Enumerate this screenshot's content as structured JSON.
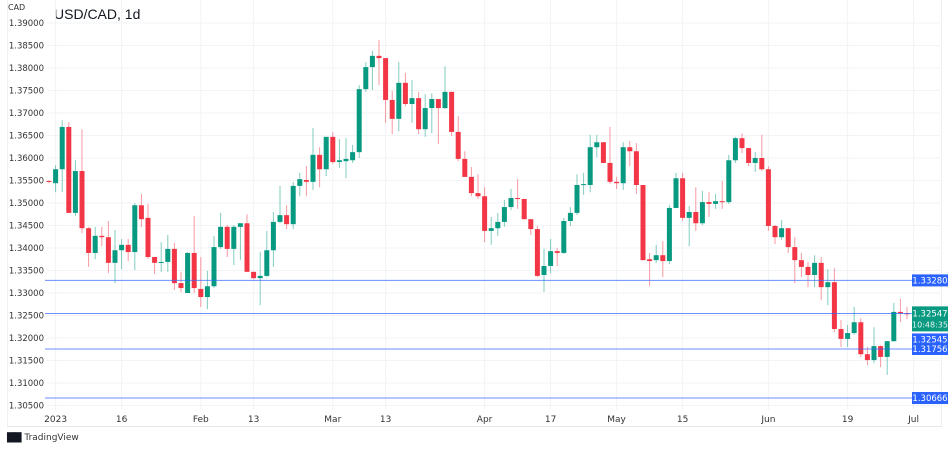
{
  "header": {
    "currency": "CAD",
    "title": "USD/CAD, 1d"
  },
  "branding": {
    "logo": "TV",
    "name": "TradingView"
  },
  "colors": {
    "up": "#089981",
    "down": "#f23645",
    "line": "#2962ff",
    "grid": "#f2f3f5",
    "text": "#333333"
  },
  "chart_data": {
    "type": "candlestick",
    "title": "USD/CAD, 1d",
    "ylabel": "CAD",
    "ylim": [
      1.3044,
      1.3912
    ],
    "grid": true,
    "y_ticks": [
      "1.39000",
      "1.38500",
      "1.38000",
      "1.37500",
      "1.37000",
      "1.36500",
      "1.36000",
      "1.35500",
      "1.35000",
      "1.34500",
      "1.34000",
      "1.33500",
      "1.33000",
      "1.32500",
      "1.32000",
      "1.31500",
      "1.31000",
      "1.30500"
    ],
    "x_ticks": [
      {
        "label": "2023",
        "index": 1
      },
      {
        "label": "16",
        "index": 11
      },
      {
        "label": "Feb",
        "index": 23
      },
      {
        "label": "13",
        "index": 31
      },
      {
        "label": "Mar",
        "index": 43
      },
      {
        "label": "13",
        "index": 51
      },
      {
        "label": "Apr",
        "index": 66
      },
      {
        "label": "17",
        "index": 76
      },
      {
        "label": "May",
        "index": 86
      },
      {
        "label": "15",
        "index": 96
      },
      {
        "label": "Jun",
        "index": 109
      },
      {
        "label": "19",
        "index": 121
      },
      {
        "label": "Jul",
        "index": 131
      }
    ],
    "ohlc": [
      [
        1.3549,
        1.355,
        1.3544,
        1.3547
      ],
      [
        1.3544,
        1.3584,
        1.3524,
        1.3575
      ],
      [
        1.3575,
        1.3684,
        1.3524,
        1.3669
      ],
      [
        1.3669,
        1.368,
        1.3478,
        1.3478
      ],
      [
        1.3478,
        1.3595,
        1.3471,
        1.3571
      ],
      [
        1.3571,
        1.3664,
        1.3433,
        1.3444
      ],
      [
        1.3444,
        1.3447,
        1.3358,
        1.3389
      ],
      [
        1.3389,
        1.3447,
        1.3375,
        1.3427
      ],
      [
        1.3427,
        1.3447,
        1.3404,
        1.3424
      ],
      [
        1.3424,
        1.346,
        1.3344,
        1.3367
      ],
      [
        1.3367,
        1.344,
        1.3322,
        1.3395
      ],
      [
        1.3395,
        1.342,
        1.3353,
        1.3407
      ],
      [
        1.3407,
        1.342,
        1.3371,
        1.3391
      ],
      [
        1.3391,
        1.35,
        1.3351,
        1.3495
      ],
      [
        1.3495,
        1.352,
        1.3447,
        1.3464
      ],
      [
        1.3467,
        1.3498,
        1.3375,
        1.338
      ],
      [
        1.338,
        1.338,
        1.3342,
        1.3367
      ],
      [
        1.3367,
        1.3413,
        1.3347,
        1.3369
      ],
      [
        1.3369,
        1.3429,
        1.3347,
        1.3398
      ],
      [
        1.3398,
        1.3411,
        1.3307,
        1.3322
      ],
      [
        1.3322,
        1.3347,
        1.3302,
        1.3311
      ],
      [
        1.33,
        1.3391,
        1.33,
        1.3389
      ],
      [
        1.3389,
        1.3471,
        1.33,
        1.3311
      ],
      [
        1.3309,
        1.338,
        1.3269,
        1.3291
      ],
      [
        1.3291,
        1.3349,
        1.3264,
        1.3315
      ],
      [
        1.3315,
        1.3427,
        1.3311,
        1.3402
      ],
      [
        1.3402,
        1.3478,
        1.3398,
        1.3447
      ],
      [
        1.3447,
        1.3451,
        1.338,
        1.3398
      ],
      [
        1.3398,
        1.3451,
        1.3362,
        1.3447
      ],
      [
        1.3447,
        1.3455,
        1.3373,
        1.3455
      ],
      [
        1.3455,
        1.3475,
        1.3347,
        1.3347
      ],
      [
        1.3347,
        1.3347,
        1.3331,
        1.3333
      ],
      [
        1.3333,
        1.3391,
        1.3273,
        1.3338
      ],
      [
        1.3338,
        1.3438,
        1.3335,
        1.3395
      ],
      [
        1.3395,
        1.348,
        1.3358,
        1.3458
      ],
      [
        1.3458,
        1.3538,
        1.3455,
        1.3473
      ],
      [
        1.3473,
        1.3495,
        1.3442,
        1.3453
      ],
      [
        1.3453,
        1.3547,
        1.3442,
        1.3538
      ],
      [
        1.3538,
        1.3567,
        1.3515,
        1.3553
      ],
      [
        1.3551,
        1.3582,
        1.3515,
        1.3547
      ],
      [
        1.3547,
        1.3667,
        1.3529,
        1.3607
      ],
      [
        1.3607,
        1.3624,
        1.3535,
        1.3575
      ],
      [
        1.3575,
        1.3647,
        1.356,
        1.3647
      ],
      [
        1.3647,
        1.3658,
        1.3587,
        1.3591
      ],
      [
        1.3591,
        1.3642,
        1.3578,
        1.3595
      ],
      [
        1.3593,
        1.3644,
        1.3555,
        1.3598
      ],
      [
        1.3595,
        1.3629,
        1.3589,
        1.3613
      ],
      [
        1.3613,
        1.3762,
        1.36,
        1.3753
      ],
      [
        1.3753,
        1.3813,
        1.3747,
        1.3802
      ],
      [
        1.3802,
        1.3838,
        1.3751,
        1.3827
      ],
      [
        1.3827,
        1.3862,
        1.3762,
        1.3822
      ],
      [
        1.3822,
        1.3822,
        1.3678,
        1.3729
      ],
      [
        1.3729,
        1.3749,
        1.3653,
        1.3687
      ],
      [
        1.3687,
        1.3813,
        1.366,
        1.3767
      ],
      [
        1.3767,
        1.3789,
        1.3715,
        1.372
      ],
      [
        1.372,
        1.3773,
        1.3678,
        1.3733
      ],
      [
        1.3733,
        1.3747,
        1.3653,
        1.3664
      ],
      [
        1.3664,
        1.3742,
        1.3647,
        1.3711
      ],
      [
        1.3711,
        1.3744,
        1.3655,
        1.3731
      ],
      [
        1.3731,
        1.3731,
        1.3631,
        1.3711
      ],
      [
        1.3711,
        1.3804,
        1.3709,
        1.3747
      ],
      [
        1.3747,
        1.3747,
        1.3649,
        1.3658
      ],
      [
        1.3658,
        1.3693,
        1.3593,
        1.3598
      ],
      [
        1.3598,
        1.3615,
        1.3558,
        1.3558
      ],
      [
        1.3558,
        1.358,
        1.3515,
        1.3522
      ],
      [
        1.3522,
        1.3564,
        1.3509,
        1.3515
      ],
      [
        1.3515,
        1.3535,
        1.3413,
        1.3438
      ],
      [
        1.3438,
        1.3469,
        1.3407,
        1.3444
      ],
      [
        1.3444,
        1.3478,
        1.3427,
        1.3458
      ],
      [
        1.3458,
        1.3507,
        1.3447,
        1.3491
      ],
      [
        1.3491,
        1.3531,
        1.3484,
        1.3511
      ],
      [
        1.3511,
        1.3553,
        1.3487,
        1.3509
      ],
      [
        1.3509,
        1.3509,
        1.3464,
        1.3464
      ],
      [
        1.3464,
        1.3464,
        1.3429,
        1.3442
      ],
      [
        1.3442,
        1.3449,
        1.3335,
        1.3338
      ],
      [
        1.334,
        1.3398,
        1.3302,
        1.336
      ],
      [
        1.336,
        1.342,
        1.3344,
        1.3393
      ],
      [
        1.3393,
        1.34,
        1.336,
        1.3389
      ],
      [
        1.3389,
        1.3467,
        1.3387,
        1.346
      ],
      [
        1.346,
        1.3491,
        1.3449,
        1.3478
      ],
      [
        1.3478,
        1.3564,
        1.3473,
        1.354
      ],
      [
        1.354,
        1.3567,
        1.3518,
        1.3542
      ],
      [
        1.354,
        1.3651,
        1.3524,
        1.3624
      ],
      [
        1.3624,
        1.3651,
        1.3602,
        1.3635
      ],
      [
        1.3635,
        1.3635,
        1.3589,
        1.3589
      ],
      [
        1.3589,
        1.3669,
        1.3542,
        1.3547
      ],
      [
        1.3547,
        1.3558,
        1.3531,
        1.3544
      ],
      [
        1.3544,
        1.3635,
        1.3529,
        1.3624
      ],
      [
        1.3624,
        1.3638,
        1.3582,
        1.3615
      ],
      [
        1.3615,
        1.3633,
        1.352,
        1.354
      ],
      [
        1.354,
        1.354,
        1.3373,
        1.3373
      ],
      [
        1.3375,
        1.3389,
        1.3315,
        1.3371
      ],
      [
        1.3373,
        1.3407,
        1.3367,
        1.3384
      ],
      [
        1.3384,
        1.3415,
        1.3335,
        1.3371
      ],
      [
        1.3371,
        1.3495,
        1.3364,
        1.3489
      ],
      [
        1.3489,
        1.3567,
        1.3489,
        1.3555
      ],
      [
        1.3555,
        1.3567,
        1.346,
        1.3467
      ],
      [
        1.3467,
        1.3493,
        1.3404,
        1.348
      ],
      [
        1.348,
        1.3535,
        1.3438,
        1.3455
      ],
      [
        1.3455,
        1.3527,
        1.3451,
        1.3502
      ],
      [
        1.3502,
        1.3524,
        1.3469,
        1.3498
      ],
      [
        1.3498,
        1.352,
        1.3487,
        1.3504
      ],
      [
        1.3504,
        1.3549,
        1.3487,
        1.3502
      ],
      [
        1.3502,
        1.3607,
        1.3498,
        1.3595
      ],
      [
        1.3595,
        1.3647,
        1.3589,
        1.3644
      ],
      [
        1.3644,
        1.3655,
        1.3611,
        1.3622
      ],
      [
        1.3622,
        1.3622,
        1.3582,
        1.3589
      ],
      [
        1.3589,
        1.3613,
        1.3569,
        1.36
      ],
      [
        1.36,
        1.3651,
        1.3571,
        1.3575
      ],
      [
        1.3575,
        1.3582,
        1.3438,
        1.3449
      ],
      [
        1.3449,
        1.3451,
        1.3409,
        1.3424
      ],
      [
        1.3424,
        1.3462,
        1.3418,
        1.3444
      ],
      [
        1.3444,
        1.3444,
        1.3389,
        1.3402
      ],
      [
        1.3402,
        1.3424,
        1.3322,
        1.3373
      ],
      [
        1.3373,
        1.3389,
        1.3335,
        1.3358
      ],
      [
        1.3358,
        1.3369,
        1.3313,
        1.334
      ],
      [
        1.334,
        1.3384,
        1.3313,
        1.3367
      ],
      [
        1.3367,
        1.338,
        1.3284,
        1.3313
      ],
      [
        1.3313,
        1.3353,
        1.3273,
        1.3324
      ],
      [
        1.3324,
        1.3355,
        1.3213,
        1.322
      ],
      [
        1.322,
        1.324,
        1.318,
        1.3198
      ],
      [
        1.3198,
        1.3229,
        1.318,
        1.3211
      ],
      [
        1.3211,
        1.3269,
        1.3207,
        1.3235
      ],
      [
        1.3235,
        1.3244,
        1.3158,
        1.3164
      ],
      [
        1.3164,
        1.318,
        1.314,
        1.3151
      ],
      [
        1.3151,
        1.3224,
        1.3144,
        1.3182
      ],
      [
        1.3182,
        1.3184,
        1.3135,
        1.3158
      ],
      [
        1.3158,
        1.3193,
        1.3118,
        1.3193
      ],
      [
        1.3193,
        1.3278,
        1.3191,
        1.3258
      ],
      [
        1.3258,
        1.3287,
        1.3235,
        1.3255
      ],
      [
        1.3255,
        1.3269,
        1.3242,
        1.32547
      ]
    ],
    "horizontal_lines": [
      {
        "value": 1.3328,
        "label": "1.33280"
      },
      {
        "value": 1.32545,
        "label": "1.32545"
      },
      {
        "value": 1.31756,
        "label": "1.31756"
      },
      {
        "value": 1.30666,
        "label": "1.30666"
      }
    ],
    "current_price": {
      "value": 1.32547,
      "label": "1.32547",
      "countdown": "10:48:35"
    }
  }
}
